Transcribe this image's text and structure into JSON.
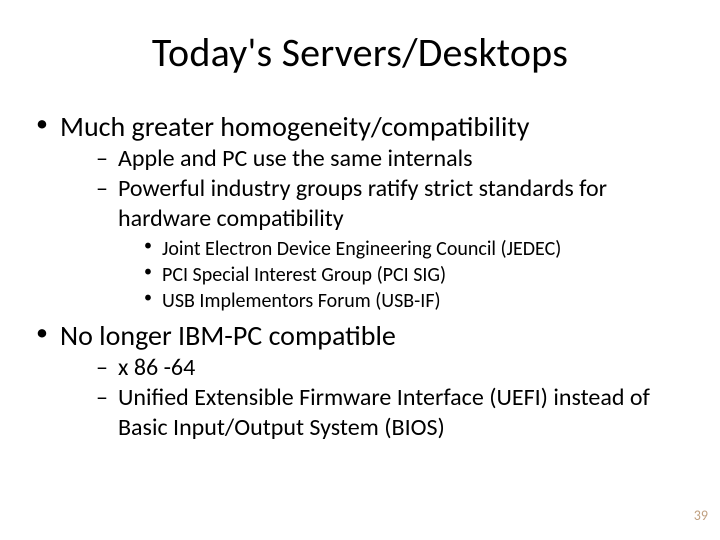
{
  "slide": {
    "title": "Today's Servers/Desktops",
    "page_number": "39",
    "background_color": "#ffffff",
    "text_color": "#000000",
    "pagenum_color": "#c0a080",
    "title_fontsize": 40,
    "lvl1_fontsize": 28,
    "lvl2_fontsize": 24,
    "lvl3_fontsize": 20,
    "bullets": [
      {
        "text": "Much greater homogeneity/compatibility",
        "children": [
          {
            "text": "Apple and PC use the same internals"
          },
          {
            "text": "Powerful industry groups ratify strict standards for hardware compatibility",
            "children": [
              {
                "text": "Joint Electron Device Engineering Council (JEDEC)"
              },
              {
                "text": "PCI Special Interest Group (PCI SIG)"
              },
              {
                "text": "USB Implementors Forum (USB-IF)"
              }
            ]
          }
        ]
      },
      {
        "text": "No longer IBM-PC compatible",
        "children": [
          {
            "text": "x 86 -64"
          },
          {
            "text": "Unified Extensible Firmware Interface (UEFI) instead of Basic Input/Output System (BIOS)"
          }
        ]
      }
    ]
  }
}
